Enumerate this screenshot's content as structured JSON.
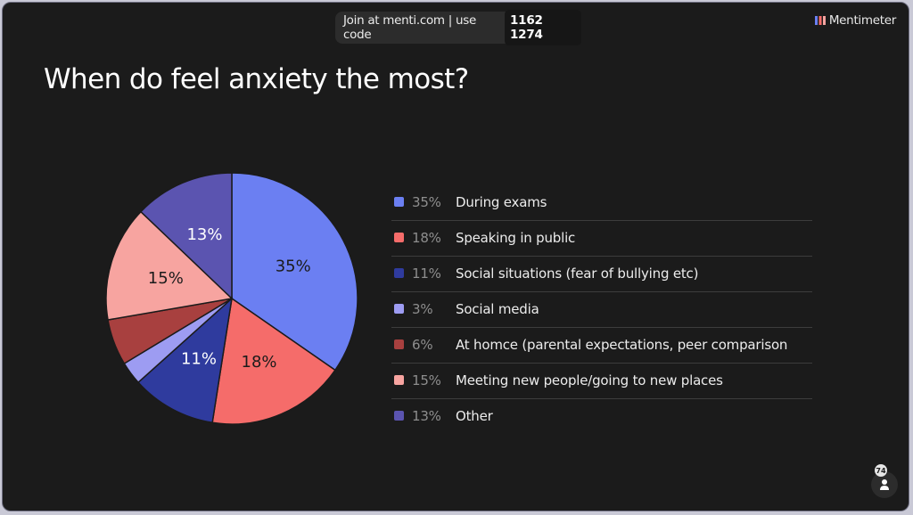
{
  "header": {
    "join_text": "Join at menti.com | use code",
    "code": "1162 1274",
    "brand": "Mentimeter"
  },
  "title": "When do feel anxiety the most?",
  "participants": "74",
  "colors": {
    "background": "#1b1b1b",
    "slice_edge": "#1b1b1b"
  },
  "chart_data": {
    "type": "pie",
    "title": "When do feel anxiety the most?",
    "legend_position": "right",
    "slices": [
      {
        "label": "During exams",
        "value": 35,
        "pct_label": "35%",
        "color": "#6b7ff2",
        "show_label": true
      },
      {
        "label": "Speaking in public",
        "value": 18,
        "pct_label": "18%",
        "color": "#f56c6a",
        "show_label": true
      },
      {
        "label": "Social situations (fear of bullying etc)",
        "value": 11,
        "pct_label": "11%",
        "color": "#2f3b9e",
        "show_label": true
      },
      {
        "label": "Social media",
        "value": 3,
        "pct_label": "3%",
        "color": "#9d9cf2",
        "show_label": false
      },
      {
        "label": "At homce (parental expectations, peer comparison",
        "value": 6,
        "pct_label": "6%",
        "color": "#a8403f",
        "show_label": false
      },
      {
        "label": "Meeting new people/going to new places",
        "value": 15,
        "pct_label": "15%",
        "color": "#f7a4a0",
        "show_label": true
      },
      {
        "label": "Other",
        "value": 13,
        "pct_label": "13%",
        "color": "#5b54b0",
        "show_label": true
      }
    ]
  }
}
